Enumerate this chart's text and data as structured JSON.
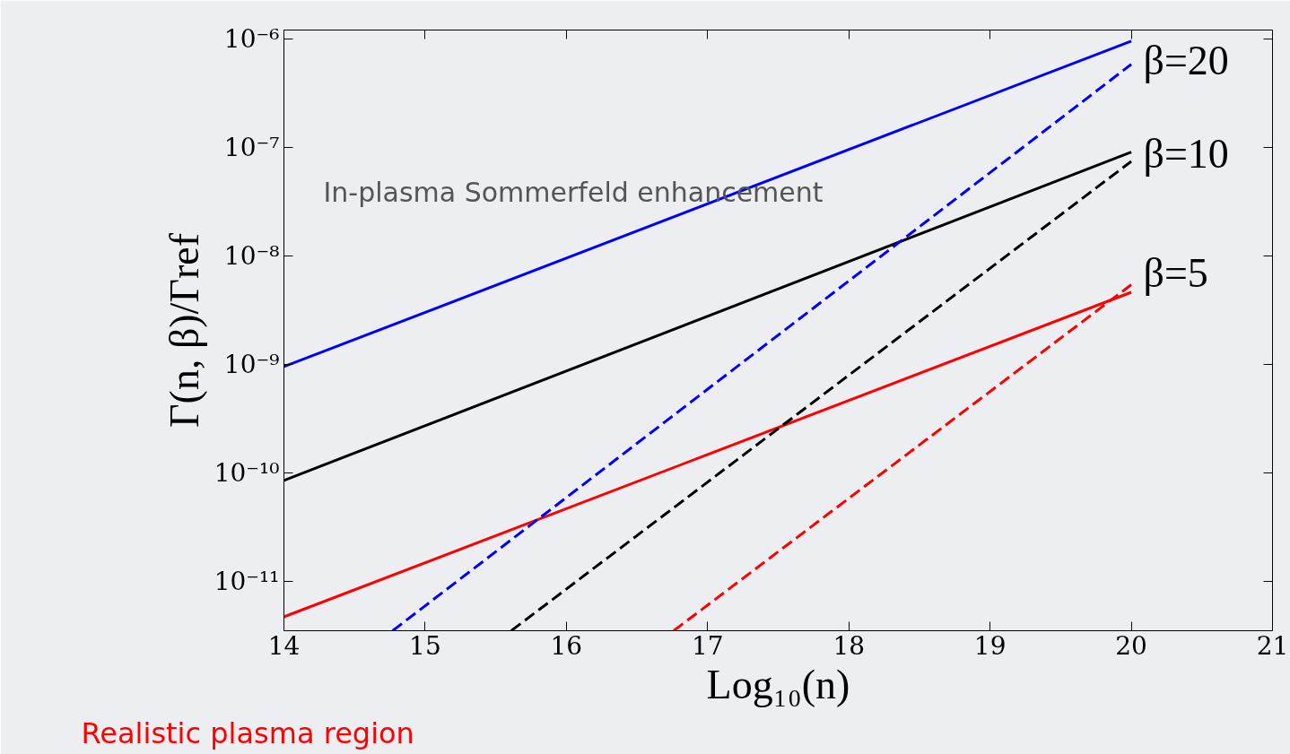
{
  "chart_data": {
    "type": "line",
    "xlabel": "Log₁₀(n)",
    "ylabel": "Γ(n, β)/Γref",
    "log": "y",
    "xlim": [
      14,
      21
    ],
    "xticks": [
      14,
      15,
      16,
      17,
      18,
      19,
      20,
      21
    ],
    "ylim": [
      3.5e-12,
      1.2e-06
    ],
    "yticks": [
      {
        "value": 1e-11,
        "label": "10⁻¹¹"
      },
      {
        "value": 1e-10,
        "label": "10⁻¹⁰"
      },
      {
        "value": 1e-09,
        "label": "10⁻⁹"
      },
      {
        "value": 1e-08,
        "label": "10⁻⁸"
      },
      {
        "value": 1e-07,
        "label": "10⁻⁷"
      },
      {
        "value": 1e-06,
        "label": "10⁻⁶"
      }
    ],
    "grid": false,
    "series": [
      {
        "color": "#0000ff",
        "line_style": "solid",
        "x": [
          14,
          20
        ],
        "values": [
          9.5e-10,
          9.5e-07
        ]
      },
      {
        "color": "#000000",
        "line_style": "solid",
        "x": [
          14,
          20
        ],
        "values": [
          8.5e-11,
          9e-08
        ]
      },
      {
        "color": "#ff0000",
        "line_style": "solid",
        "x": [
          14,
          20
        ],
        "values": [
          4.7e-12,
          4.6e-09
        ]
      },
      {
        "color": "#0000ff",
        "line_style": "dashed",
        "x": [
          14.77,
          20
        ],
        "values": [
          3.5e-12,
          5.8e-07
        ]
      },
      {
        "color": "#000000",
        "line_style": "dashed",
        "x": [
          15.61,
          20
        ],
        "values": [
          3.5e-12,
          7.4e-08
        ]
      },
      {
        "color": "#ff0000",
        "line_style": "dashed",
        "x": [
          16.76,
          20
        ],
        "values": [
          3.5e-12,
          5.4e-09
        ]
      }
    ],
    "annotations": [
      "β=20",
      "β=10",
      "β=5",
      "In-plasma Sommerfeld enhancement",
      "Realistic plasma region"
    ]
  }
}
